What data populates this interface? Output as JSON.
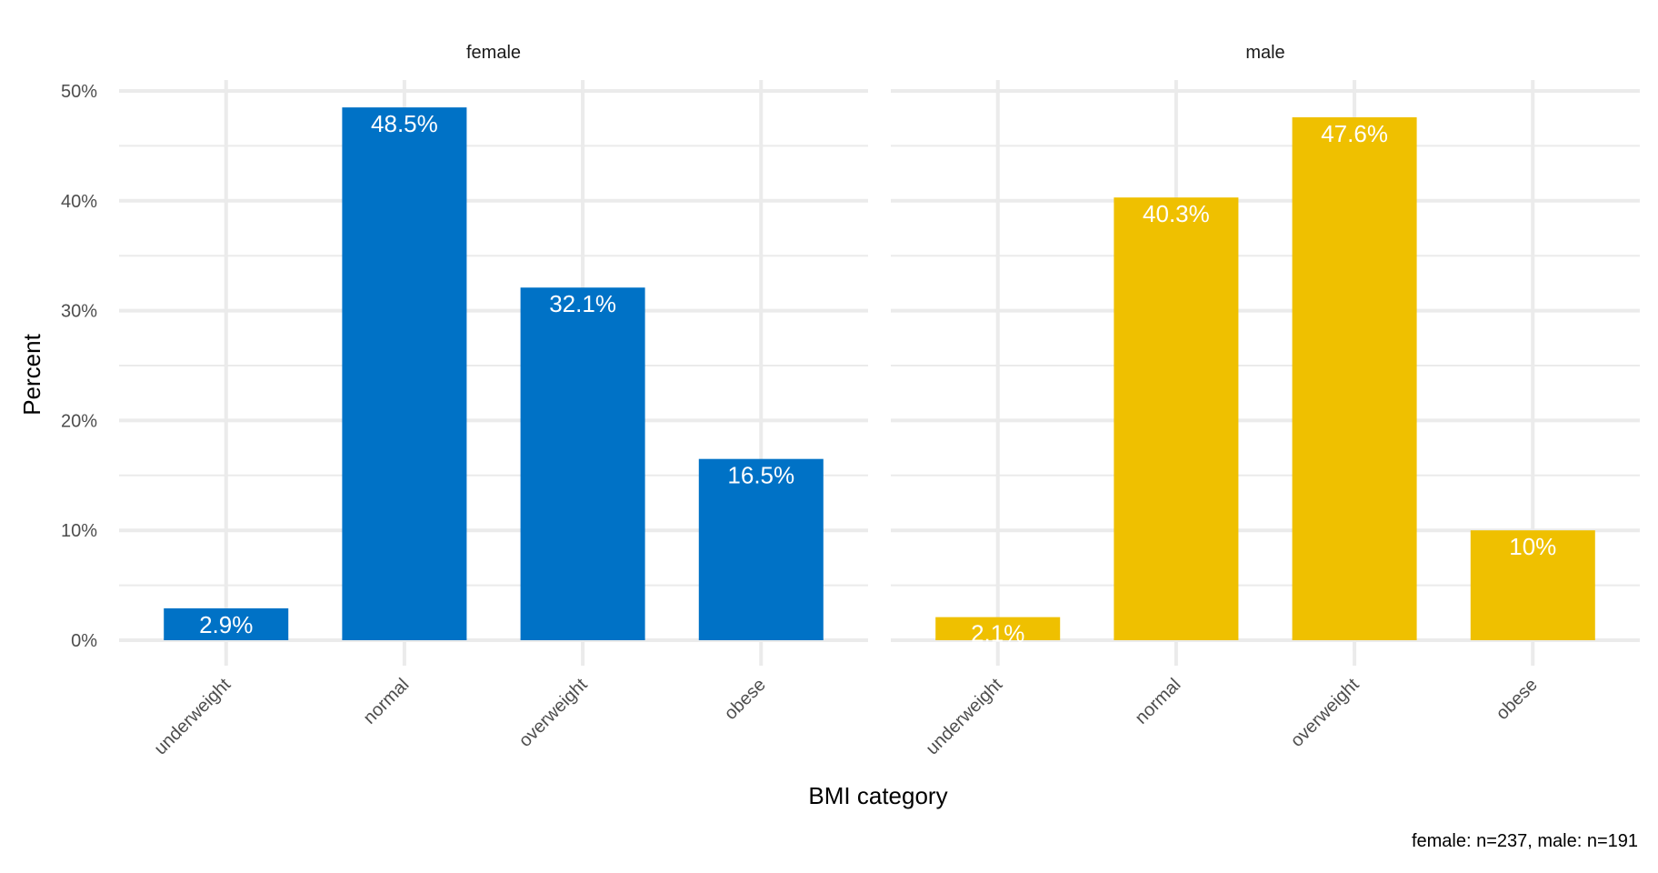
{
  "chart_data": {
    "type": "bar",
    "facet_by": "sex",
    "categories": [
      "underweight",
      "normal",
      "overweight",
      "obese"
    ],
    "series": [
      {
        "name": "female",
        "values": [
          2.9,
          48.5,
          32.1,
          16.5
        ],
        "labels": [
          "2.9%",
          "48.5%",
          "32.1%",
          "16.5%"
        ],
        "color": "#0072C6"
      },
      {
        "name": "male",
        "values": [
          2.1,
          40.3,
          47.6,
          10
        ],
        "labels": [
          "2.1%",
          "40.3%",
          "47.6%",
          "10%"
        ],
        "color": "#EFC000"
      }
    ],
    "xlabel": "BMI category",
    "ylabel": "Percent",
    "ylim": [
      0,
      50
    ],
    "yticks": [
      0,
      10,
      20,
      30,
      40,
      50
    ],
    "ytick_labels": [
      "0%",
      "10%",
      "20%",
      "30%",
      "40%",
      "50%"
    ],
    "caption": "female: n=237, male: n=191",
    "grid": true,
    "legend": "none"
  }
}
